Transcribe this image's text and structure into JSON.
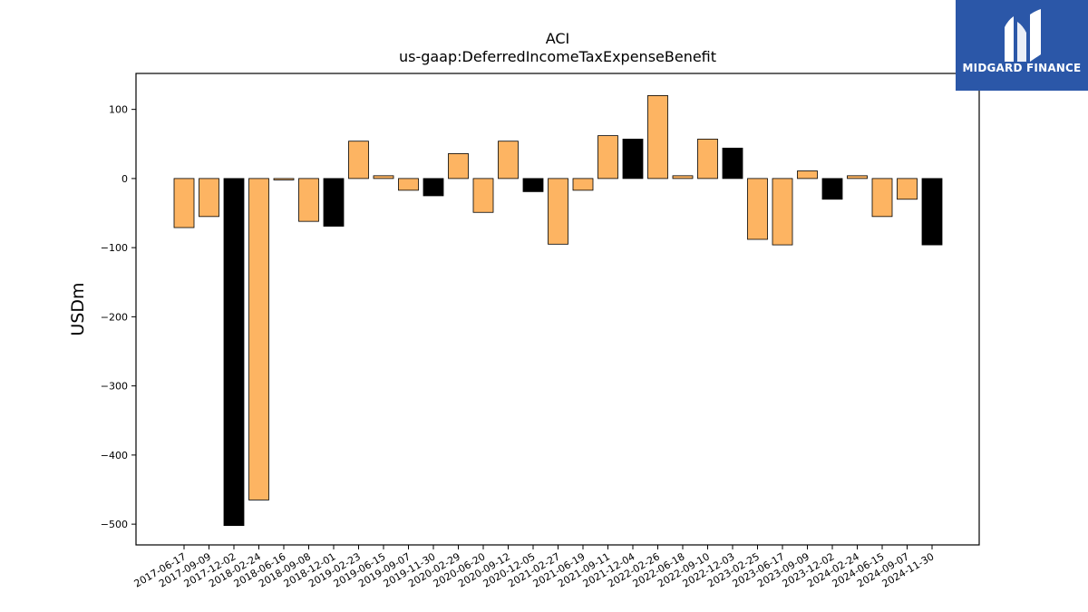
{
  "logo": {
    "text": "MIDGARD FINANCE"
  },
  "chart_data": {
    "type": "bar",
    "title": "ACI",
    "subtitle": "us-gaap:DeferredIncomeTaxExpenseBenefit",
    "xlabel": "",
    "ylabel": "USDm",
    "ylim": [
      -530,
      152
    ],
    "yticks": [
      100,
      0,
      -100,
      -200,
      -300,
      -400,
      -500
    ],
    "ytick_labels": [
      "100",
      "0",
      "−100",
      "−200",
      "−300",
      "−400",
      "−500"
    ],
    "grid": false,
    "colors": {
      "quarter": "#fdb462",
      "annual": "#000000",
      "edge": "#000000"
    },
    "categories": [
      "2017-06-17",
      "2017-09-09",
      "2017-12-02",
      "2018-02-24",
      "2018-06-16",
      "2018-09-08",
      "2018-12-01",
      "2019-02-23",
      "2019-06-15",
      "2019-09-07",
      "2019-11-30",
      "2020-02-29",
      "2020-06-20",
      "2020-09-12",
      "2020-12-05",
      "2021-02-27",
      "2021-06-19",
      "2021-09-11",
      "2021-12-04",
      "2022-02-26",
      "2022-06-18",
      "2022-09-10",
      "2022-12-03",
      "2023-02-25",
      "2023-06-17",
      "2023-09-09",
      "2023-12-02",
      "2024-02-24",
      "2024-06-15",
      "2024-09-07",
      "2024-11-30"
    ],
    "values": [
      -71,
      -55,
      -502,
      -465,
      -2,
      -62,
      -69,
      54,
      4,
      -17,
      -25,
      36,
      -49,
      54,
      -19,
      -95,
      -17,
      62,
      57,
      120,
      4,
      57,
      44,
      -88,
      -96,
      11,
      -30,
      4,
      -55,
      -30,
      -96
    ],
    "highlight": [
      false,
      false,
      true,
      false,
      false,
      false,
      true,
      false,
      false,
      false,
      true,
      false,
      false,
      false,
      true,
      false,
      false,
      false,
      true,
      false,
      false,
      false,
      true,
      false,
      false,
      false,
      true,
      false,
      false,
      false,
      true
    ]
  }
}
